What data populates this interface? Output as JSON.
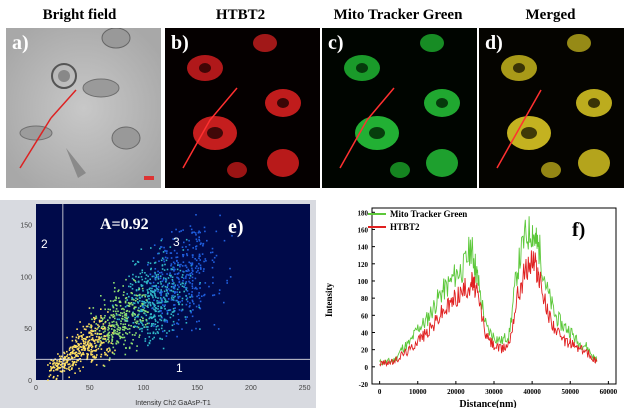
{
  "columns": {
    "bright": "Bright field",
    "htbt2": "HTBT2",
    "mito": "Mito Tracker Green",
    "merged": "Merged"
  },
  "panels": {
    "a": "a)",
    "b": "b)",
    "c": "c)",
    "d": "d)",
    "e": "e)",
    "f": "f)"
  },
  "colors": {
    "red_channel": "#e0201c",
    "green_channel": "#28c03a",
    "merged_channel": "#d8c020",
    "scatter_bg": "#000a4a",
    "profile_green": "#5cc83a",
    "profile_red": "#e02020"
  },
  "chart_data": [
    {
      "type": "scatter",
      "annotation": "A=0.92",
      "quadrants": [
        "1",
        "2",
        "3"
      ],
      "xlabel": "Intensity Ch2 GaAsP-T1",
      "ylabel": "",
      "xlim": [
        0,
        255
      ],
      "ylim": [
        0,
        170
      ],
      "xticks": [
        0,
        50,
        100,
        150,
        200,
        250
      ],
      "yticks": [
        0,
        50,
        100,
        150
      ],
      "threshold_x": 25,
      "threshold_y": 20,
      "density_axis": [
        [
          12,
          8
        ],
        [
          100,
          75
        ],
        [
          150,
          110
        ]
      ]
    },
    {
      "type": "line",
      "xlabel": "Distance(nm)",
      "ylabel": "Intensity",
      "xlim": [
        -2000,
        62000
      ],
      "ylim": [
        -20,
        185
      ],
      "xticks": [
        0,
        10000,
        20000,
        30000,
        40000,
        50000,
        60000
      ],
      "yticks": [
        -20,
        0,
        20,
        40,
        60,
        80,
        100,
        120,
        140,
        160,
        180
      ],
      "legend_position": "top-left",
      "x": [
        0,
        2000,
        4000,
        6000,
        8000,
        10000,
        12000,
        14000,
        16000,
        18000,
        20000,
        22000,
        24000,
        25000,
        26000,
        28000,
        30000,
        32000,
        34000,
        36000,
        38000,
        40000,
        41000,
        42000,
        44000,
        46000,
        48000,
        50000,
        52000,
        54000,
        56000,
        57000
      ],
      "series": [
        {
          "name": "Mito Tracker Green",
          "values": [
            5,
            6,
            8,
            22,
            28,
            45,
            52,
            68,
            85,
            95,
            108,
            115,
            140,
            120,
            95,
            45,
            35,
            30,
            38,
            110,
            150,
            160,
            145,
            135,
            88,
            60,
            48,
            42,
            28,
            25,
            12,
            8
          ]
        },
        {
          "name": "HTBT2",
          "values": [
            4,
            5,
            6,
            15,
            20,
            32,
            38,
            48,
            62,
            70,
            82,
            88,
            100,
            92,
            78,
            35,
            25,
            20,
            28,
            80,
            110,
            125,
            118,
            100,
            65,
            45,
            30,
            28,
            22,
            18,
            10,
            6
          ]
        }
      ]
    }
  ]
}
